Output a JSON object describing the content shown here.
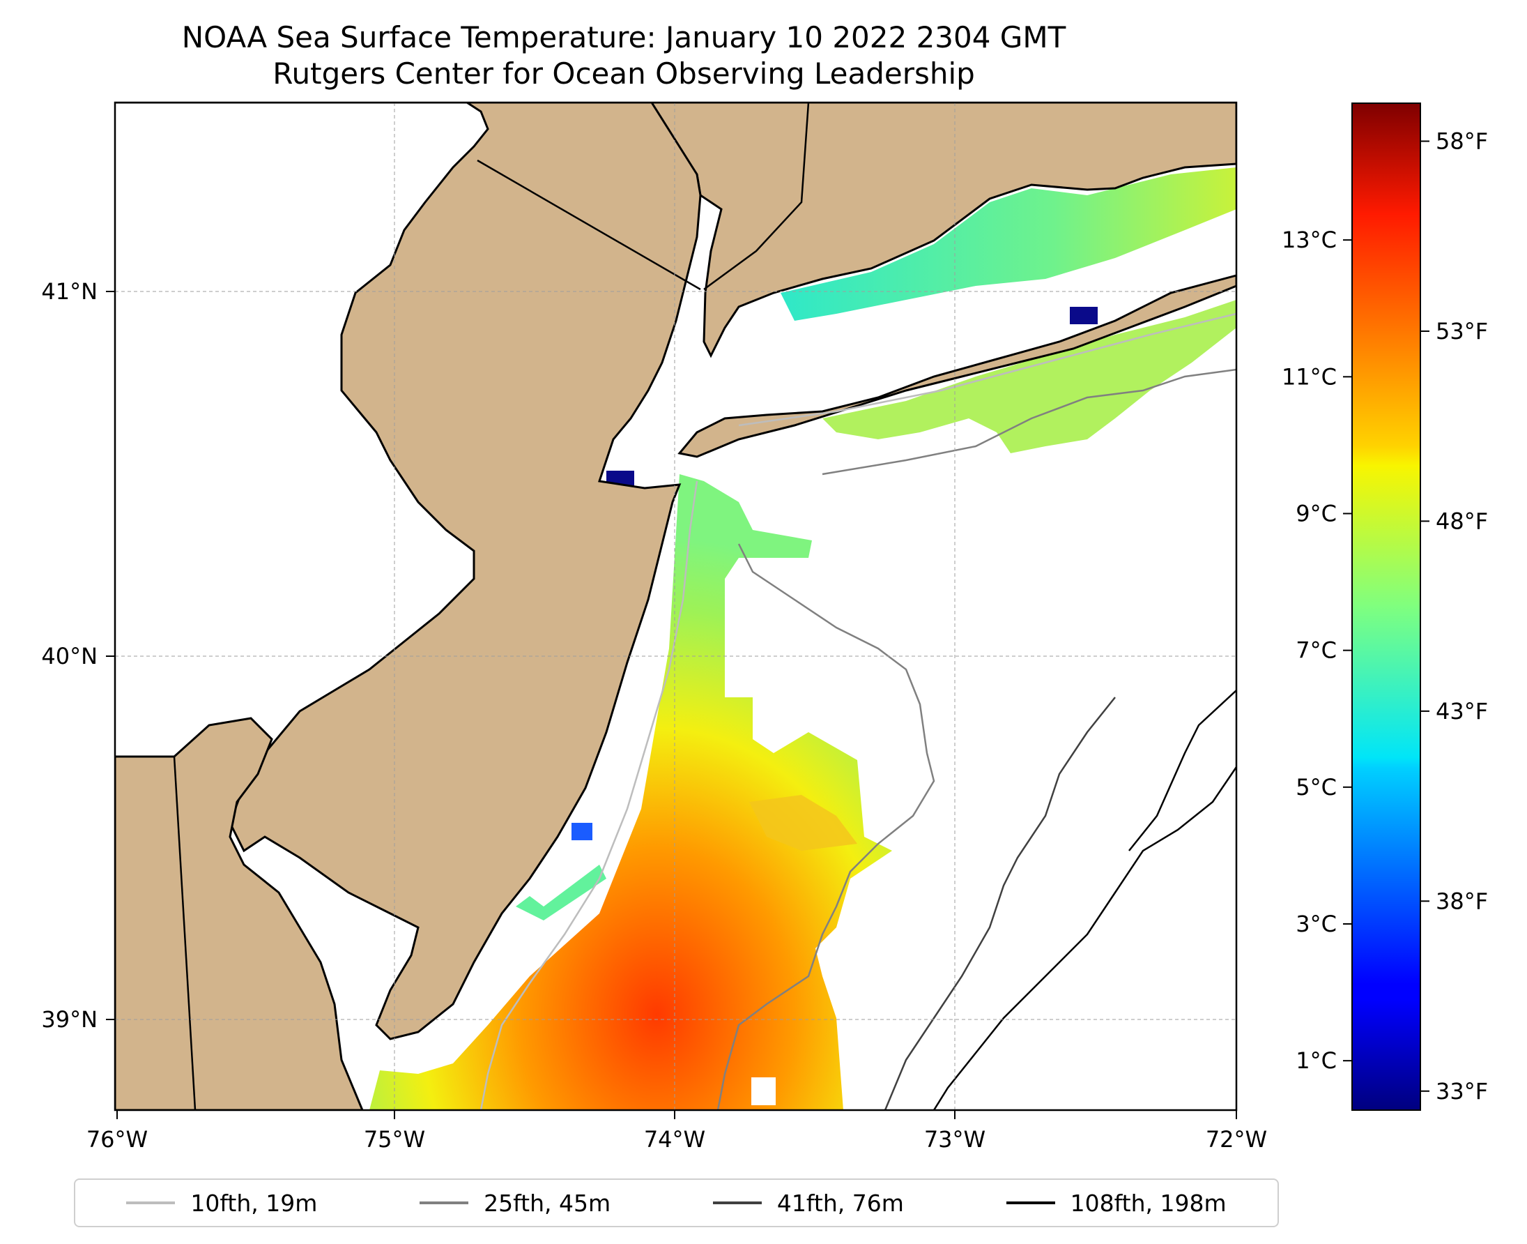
{
  "title": {
    "line1": "NOAA Sea Surface Temperature: January 10 2022 2304 GMT",
    "line2": "Rutgers Center for Ocean Observing Leadership"
  },
  "axes": {
    "lon_ticks": [
      "76°W",
      "75°W",
      "74°W",
      "73°W",
      "72°W"
    ],
    "lat_ticks": [
      "41°N",
      "40°N",
      "39°N"
    ],
    "lon_range": [
      -76,
      -72
    ],
    "lat_range": [
      38.75,
      41.52
    ]
  },
  "colorbar": {
    "celsius_ticks": [
      "13°C",
      "11°C",
      "9°C",
      "7°C",
      "5°C",
      "3°C",
      "1°C"
    ],
    "celsius_values": [
      13,
      11,
      9,
      7,
      5,
      3,
      1
    ],
    "fahrenheit_ticks": [
      "58°F",
      "53°F",
      "48°F",
      "43°F",
      "38°F",
      "33°F"
    ],
    "fahrenheit_values": [
      58,
      53,
      48,
      43,
      38,
      33
    ],
    "range_f": [
      32.5,
      59
    ],
    "colormap": "jet"
  },
  "legend": [
    {
      "label": "10fth, 19m",
      "color": "#bdbdbd"
    },
    {
      "label": "25fth, 45m",
      "color": "#808080"
    },
    {
      "label": "41fth, 76m",
      "color": "#404040"
    },
    {
      "label": "108fth, 198m",
      "color": "#000000"
    }
  ],
  "colors": {
    "land": "#d2b48c",
    "grid": "#9e9e9e"
  }
}
